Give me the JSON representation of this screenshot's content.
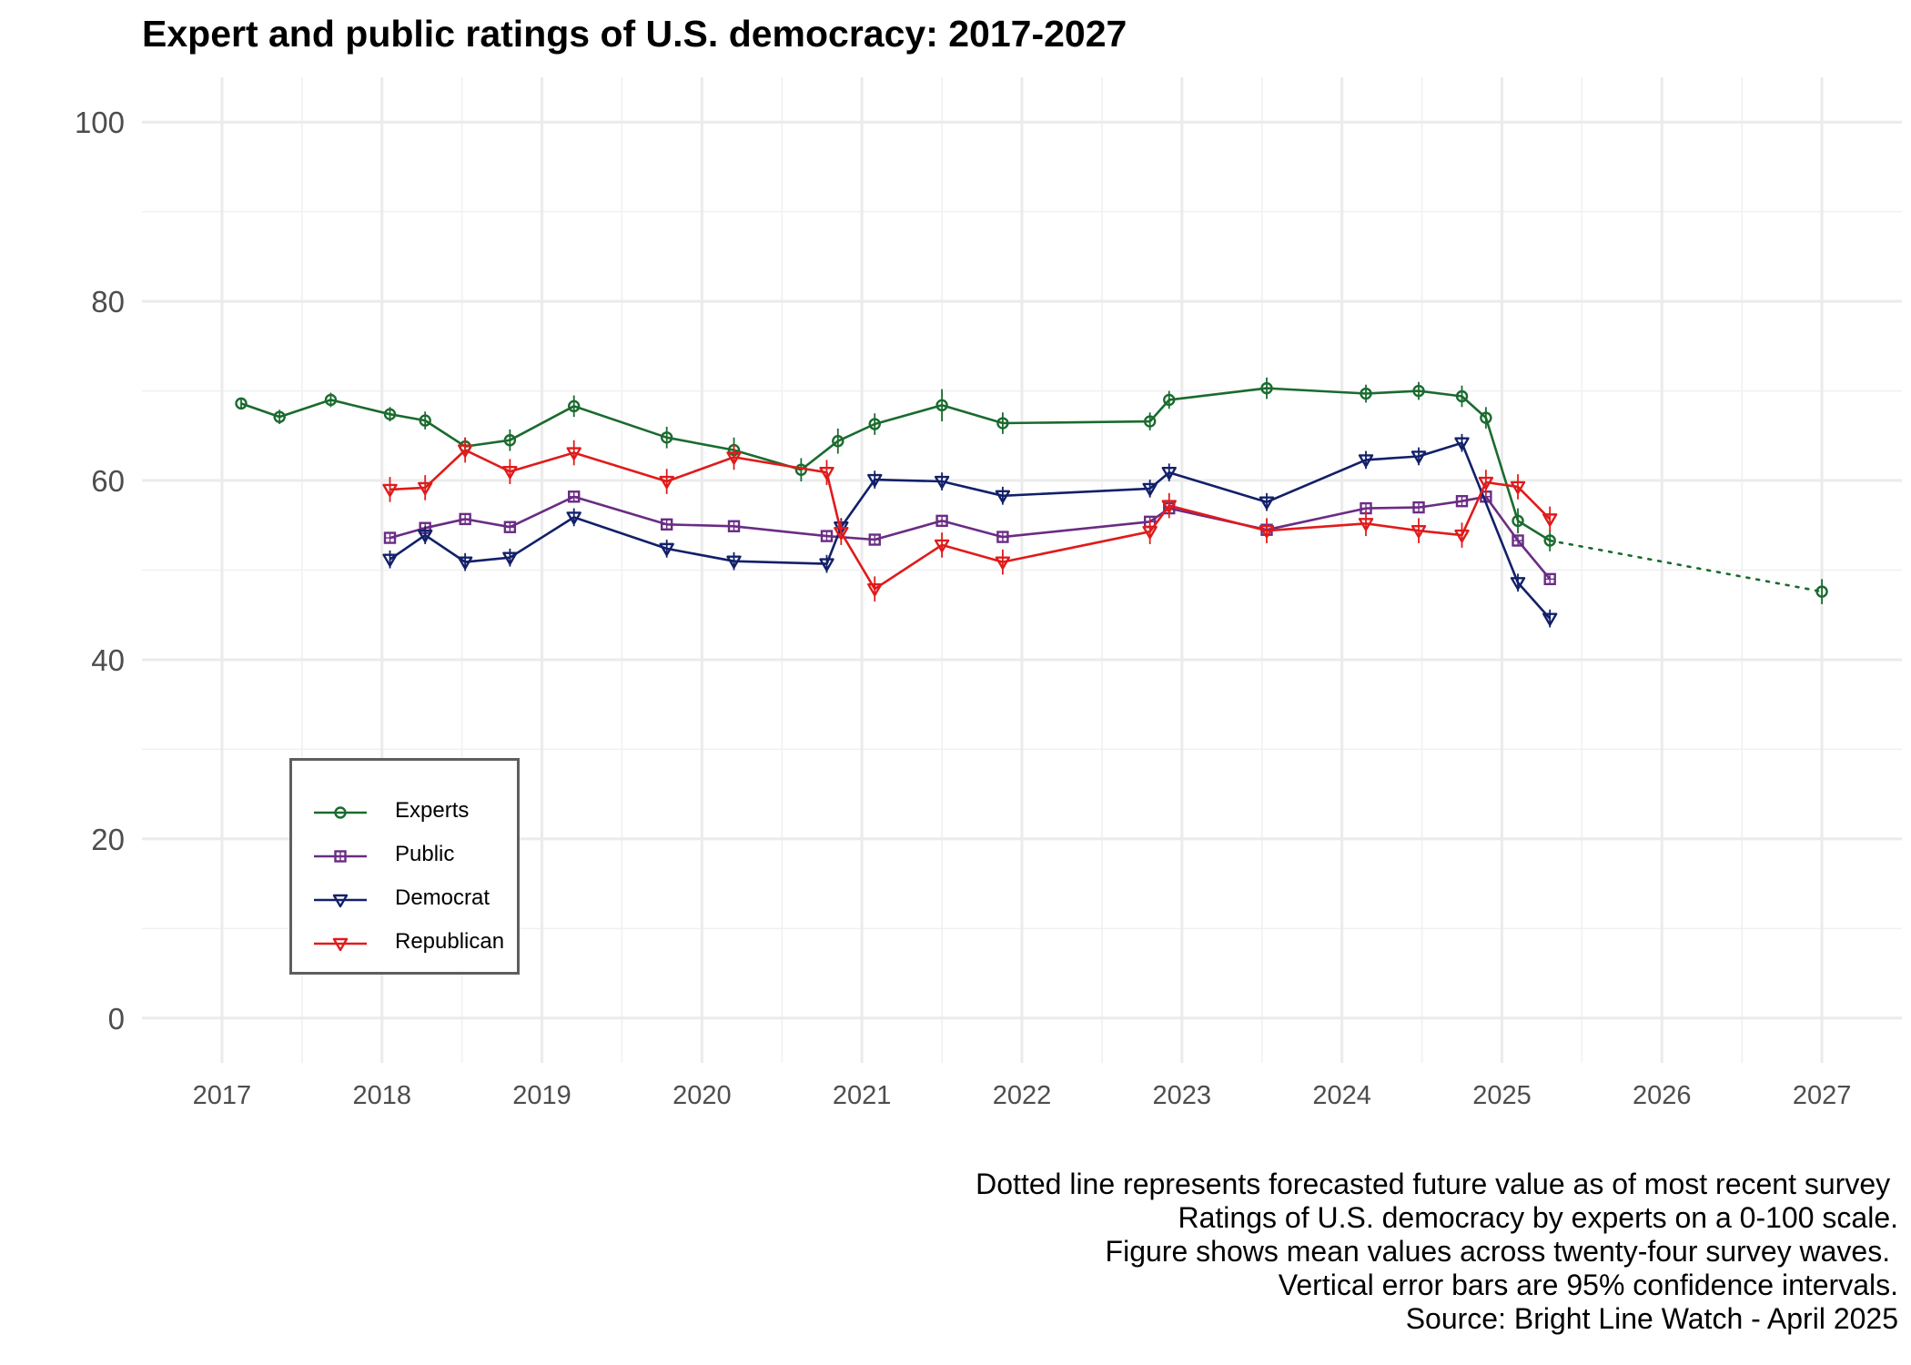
{
  "chart_data": {
    "type": "line",
    "title": "Expert and public ratings of U.S. democracy: 2017-2027",
    "xlabel": "",
    "ylabel": "",
    "xlim": [
      2016.5,
      2027.5
    ],
    "ylim": [
      -5,
      105
    ],
    "x_ticks": [
      2017,
      2018,
      2019,
      2020,
      2021,
      2022,
      2023,
      2024,
      2025,
      2026,
      2027
    ],
    "y_ticks": [
      0,
      20,
      40,
      60,
      80,
      100
    ],
    "grid": true,
    "legend_position": "bottom-left",
    "series": [
      {
        "name": "Experts",
        "color": "#1a6b2e",
        "marker": "circle",
        "points": [
          {
            "x": 2017.12,
            "y": 68.6,
            "lo": 68.0,
            "hi": 69.2
          },
          {
            "x": 2017.36,
            "y": 67.1,
            "lo": 66.3,
            "hi": 67.9
          },
          {
            "x": 2017.68,
            "y": 69.0,
            "lo": 68.2,
            "hi": 69.8
          },
          {
            "x": 2018.05,
            "y": 67.4,
            "lo": 66.6,
            "hi": 68.2
          },
          {
            "x": 2018.27,
            "y": 66.7,
            "lo": 65.7,
            "hi": 67.7
          },
          {
            "x": 2018.52,
            "y": 63.8,
            "lo": 62.8,
            "hi": 64.8
          },
          {
            "x": 2018.8,
            "y": 64.5,
            "lo": 63.3,
            "hi": 65.7
          },
          {
            "x": 2019.2,
            "y": 68.3,
            "lo": 67.1,
            "hi": 69.5
          },
          {
            "x": 2019.78,
            "y": 64.8,
            "lo": 63.6,
            "hi": 66.0
          },
          {
            "x": 2020.2,
            "y": 63.4,
            "lo": 62.0,
            "hi": 64.8
          },
          {
            "x": 2020.62,
            "y": 61.2,
            "lo": 59.9,
            "hi": 62.5
          },
          {
            "x": 2020.85,
            "y": 64.4,
            "lo": 63.0,
            "hi": 65.8
          },
          {
            "x": 2021.08,
            "y": 66.3,
            "lo": 65.1,
            "hi": 67.5
          },
          {
            "x": 2021.5,
            "y": 68.4,
            "lo": 66.6,
            "hi": 70.2
          },
          {
            "x": 2021.88,
            "y": 66.4,
            "lo": 65.2,
            "hi": 67.6
          },
          {
            "x": 2022.8,
            "y": 66.6,
            "lo": 65.6,
            "hi": 67.6
          },
          {
            "x": 2022.92,
            "y": 69.0,
            "lo": 68.0,
            "hi": 70.0
          },
          {
            "x": 2023.53,
            "y": 70.3,
            "lo": 69.1,
            "hi": 71.5
          },
          {
            "x": 2024.15,
            "y": 69.7,
            "lo": 68.7,
            "hi": 70.7
          },
          {
            "x": 2024.48,
            "y": 70.0,
            "lo": 69.0,
            "hi": 71.0
          },
          {
            "x": 2024.75,
            "y": 69.4,
            "lo": 68.2,
            "hi": 70.6
          },
          {
            "x": 2024.9,
            "y": 67.0,
            "lo": 65.8,
            "hi": 68.2
          },
          {
            "x": 2025.1,
            "y": 55.5,
            "lo": 54.1,
            "hi": 56.9
          },
          {
            "x": 2025.3,
            "y": 53.3,
            "lo": 52.1,
            "hi": 54.5
          }
        ],
        "forecast": {
          "x": 2027.0,
          "y": 47.6,
          "lo": 46.2,
          "hi": 49.0
        }
      },
      {
        "name": "Public",
        "color": "#6a2c84",
        "marker": "square",
        "points": [
          {
            "x": 2018.05,
            "y": 53.6
          },
          {
            "x": 2018.27,
            "y": 54.7
          },
          {
            "x": 2018.52,
            "y": 55.7
          },
          {
            "x": 2018.8,
            "y": 54.8
          },
          {
            "x": 2019.2,
            "y": 58.2
          },
          {
            "x": 2019.78,
            "y": 55.1
          },
          {
            "x": 2020.2,
            "y": 54.9
          },
          {
            "x": 2020.78,
            "y": 53.8
          },
          {
            "x": 2021.08,
            "y": 53.4
          },
          {
            "x": 2021.5,
            "y": 55.5
          },
          {
            "x": 2021.88,
            "y": 53.7
          },
          {
            "x": 2022.8,
            "y": 55.4
          },
          {
            "x": 2022.92,
            "y": 56.9
          },
          {
            "x": 2023.53,
            "y": 54.5
          },
          {
            "x": 2024.15,
            "y": 56.9
          },
          {
            "x": 2024.48,
            "y": 57.0
          },
          {
            "x": 2024.75,
            "y": 57.7
          },
          {
            "x": 2024.9,
            "y": 58.2
          },
          {
            "x": 2025.1,
            "y": 53.3
          },
          {
            "x": 2025.3,
            "y": 49.0
          }
        ]
      },
      {
        "name": "Democrat",
        "color": "#12206a",
        "marker": "triangle-down",
        "points": [
          {
            "x": 2018.05,
            "y": 51.2,
            "lo": 50.2,
            "hi": 52.2
          },
          {
            "x": 2018.27,
            "y": 53.9,
            "lo": 52.9,
            "hi": 54.9
          },
          {
            "x": 2018.52,
            "y": 50.9,
            "lo": 49.9,
            "hi": 51.9
          },
          {
            "x": 2018.8,
            "y": 51.4,
            "lo": 50.4,
            "hi": 52.4
          },
          {
            "x": 2019.2,
            "y": 55.9,
            "lo": 54.9,
            "hi": 56.9
          },
          {
            "x": 2019.78,
            "y": 52.4,
            "lo": 51.4,
            "hi": 53.4
          },
          {
            "x": 2020.2,
            "y": 51.0,
            "lo": 50.0,
            "hi": 52.0
          },
          {
            "x": 2020.78,
            "y": 50.7,
            "lo": 49.7,
            "hi": 51.7
          },
          {
            "x": 2020.87,
            "y": 54.8,
            "lo": 53.8,
            "hi": 55.8
          },
          {
            "x": 2021.08,
            "y": 60.1,
            "lo": 59.1,
            "hi": 61.1
          },
          {
            "x": 2021.5,
            "y": 59.9,
            "lo": 58.9,
            "hi": 60.9
          },
          {
            "x": 2021.88,
            "y": 58.3,
            "lo": 57.3,
            "hi": 59.3
          },
          {
            "x": 2022.8,
            "y": 59.1,
            "lo": 58.1,
            "hi": 60.1
          },
          {
            "x": 2022.92,
            "y": 60.9,
            "lo": 59.9,
            "hi": 61.9
          },
          {
            "x": 2023.53,
            "y": 57.6,
            "lo": 56.6,
            "hi": 58.6
          },
          {
            "x": 2024.15,
            "y": 62.3,
            "lo": 61.3,
            "hi": 63.3
          },
          {
            "x": 2024.48,
            "y": 62.7,
            "lo": 61.7,
            "hi": 63.7
          },
          {
            "x": 2024.75,
            "y": 64.2,
            "lo": 63.2,
            "hi": 65.2
          },
          {
            "x": 2025.1,
            "y": 48.6,
            "lo": 47.6,
            "hi": 49.6
          },
          {
            "x": 2025.3,
            "y": 44.6,
            "lo": 43.6,
            "hi": 45.6
          }
        ]
      },
      {
        "name": "Republican",
        "color": "#e01b1b",
        "marker": "triangle-down",
        "points": [
          {
            "x": 2018.05,
            "y": 59.0,
            "lo": 57.6,
            "hi": 60.4
          },
          {
            "x": 2018.27,
            "y": 59.2,
            "lo": 57.8,
            "hi": 60.6
          },
          {
            "x": 2018.52,
            "y": 63.4,
            "lo": 62.0,
            "hi": 64.8
          },
          {
            "x": 2018.8,
            "y": 61.0,
            "lo": 59.6,
            "hi": 62.4
          },
          {
            "x": 2019.2,
            "y": 63.1,
            "lo": 61.7,
            "hi": 64.5
          },
          {
            "x": 2019.78,
            "y": 59.9,
            "lo": 58.5,
            "hi": 61.3
          },
          {
            "x": 2020.2,
            "y": 62.6,
            "lo": 61.2,
            "hi": 64.0
          },
          {
            "x": 2020.78,
            "y": 60.9,
            "lo": 59.5,
            "hi": 62.3
          },
          {
            "x": 2020.87,
            "y": 54.2,
            "lo": 52.8,
            "hi": 55.6
          },
          {
            "x": 2021.08,
            "y": 47.9,
            "lo": 46.5,
            "hi": 49.3
          },
          {
            "x": 2021.5,
            "y": 52.8,
            "lo": 51.4,
            "hi": 54.2
          },
          {
            "x": 2021.88,
            "y": 50.9,
            "lo": 49.5,
            "hi": 52.3
          },
          {
            "x": 2022.8,
            "y": 54.3,
            "lo": 52.9,
            "hi": 55.7
          },
          {
            "x": 2022.92,
            "y": 57.2,
            "lo": 55.8,
            "hi": 58.6
          },
          {
            "x": 2023.53,
            "y": 54.4,
            "lo": 53.0,
            "hi": 55.8
          },
          {
            "x": 2024.15,
            "y": 55.2,
            "lo": 53.8,
            "hi": 56.6
          },
          {
            "x": 2024.48,
            "y": 54.4,
            "lo": 53.0,
            "hi": 55.8
          },
          {
            "x": 2024.75,
            "y": 53.9,
            "lo": 52.5,
            "hi": 55.3
          },
          {
            "x": 2024.9,
            "y": 59.8,
            "lo": 58.4,
            "hi": 61.2
          },
          {
            "x": 2025.1,
            "y": 59.3,
            "lo": 57.9,
            "hi": 60.7
          },
          {
            "x": 2025.3,
            "y": 55.7,
            "lo": 54.3,
            "hi": 57.1
          }
        ]
      }
    ],
    "caption": [
      "Dotted line represents forecasted future value as of most recent survey ",
      "Ratings of U.S. democracy by experts on a 0-100 scale.",
      "Figure shows mean values across twenty-four survey waves. ",
      "Vertical error bars are 95% confidence intervals.",
      "Source: Bright Line Watch - April 2025"
    ]
  }
}
